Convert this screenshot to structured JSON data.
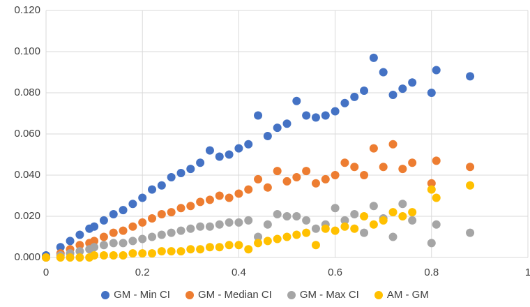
{
  "chart_data": {
    "type": "scatter",
    "x": [
      0,
      0.03,
      0.05,
      0.07,
      0.09,
      0.1,
      0.12,
      0.14,
      0.16,
      0.18,
      0.2,
      0.22,
      0.24,
      0.26,
      0.28,
      0.3,
      0.32,
      0.34,
      0.36,
      0.38,
      0.4,
      0.42,
      0.44,
      0.46,
      0.48,
      0.5,
      0.52,
      0.54,
      0.56,
      0.58,
      0.6,
      0.62,
      0.64,
      0.66,
      0.68,
      0.7,
      0.72,
      0.74,
      0.76,
      0.8,
      0.81,
      0.88
    ],
    "series": [
      {
        "name": "GM - Min CI",
        "color": "#4472c4",
        "values": [
          0.001,
          0.005,
          0.008,
          0.011,
          0.014,
          0.015,
          0.018,
          0.021,
          0.023,
          0.026,
          0.029,
          0.033,
          0.035,
          0.039,
          0.041,
          0.043,
          0.046,
          0.052,
          0.049,
          0.05,
          0.053,
          0.055,
          0.069,
          0.059,
          0.063,
          0.065,
          0.076,
          0.069,
          0.068,
          0.069,
          0.071,
          0.075,
          0.078,
          0.081,
          0.097,
          0.09,
          0.079,
          0.082,
          0.085,
          0.08,
          0.091,
          0.088
        ]
      },
      {
        "name": "GM - Median CI",
        "color": "#ed7d31",
        "values": [
          0,
          0.002,
          0.004,
          0.006,
          0.007,
          0.008,
          0.01,
          0.012,
          0.013,
          0.015,
          0.017,
          0.019,
          0.021,
          0.022,
          0.024,
          0.025,
          0.027,
          0.028,
          0.03,
          0.029,
          0.031,
          0.033,
          0.038,
          0.034,
          0.042,
          0.037,
          0.039,
          0.042,
          0.036,
          0.038,
          0.04,
          0.046,
          0.044,
          0.04,
          0.053,
          0.044,
          0.055,
          0.043,
          0.046,
          0.036,
          0.047,
          0.044
        ]
      },
      {
        "name": "GM - Max CI",
        "color": "#a5a5a5",
        "values": [
          0,
          0.001,
          0.002,
          0.003,
          0.004,
          0.005,
          0.006,
          0.007,
          0.007,
          0.008,
          0.009,
          0.01,
          0.011,
          0.012,
          0.013,
          0.014,
          0.015,
          0.015,
          0.016,
          0.017,
          0.017,
          0.018,
          0.01,
          0.016,
          0.021,
          0.02,
          0.02,
          0.018,
          0.014,
          0.016,
          0.024,
          0.018,
          0.021,
          0.012,
          0.025,
          0.019,
          0.01,
          0.026,
          0.018,
          0.007,
          0.016,
          0.012
        ]
      },
      {
        "name": "AM - GM",
        "color": "#ffc000",
        "values": [
          0,
          0,
          0,
          0,
          0,
          0.001,
          0.001,
          0.001,
          0.001,
          0.002,
          0.002,
          0.002,
          0.003,
          0.003,
          0.003,
          0.004,
          0.004,
          0.005,
          0.005,
          0.006,
          0.006,
          0.004,
          0.007,
          0.008,
          0.009,
          0.01,
          0.011,
          0.012,
          0.006,
          0.014,
          0.013,
          0.015,
          0.014,
          0.02,
          0.016,
          0.018,
          0.022,
          0.02,
          0.022,
          0.033,
          0.029,
          0.035
        ]
      }
    ],
    "xlim": [
      0,
      1
    ],
    "xticks": [
      0,
      0.2,
      0.4,
      0.6,
      0.8,
      1
    ],
    "ylim": [
      0,
      0.12
    ],
    "yticks": [
      {
        "value": 0,
        "label": "0.000"
      },
      {
        "value": 0.02,
        "label": "0.020"
      },
      {
        "value": 0.04,
        "label": "0.040"
      },
      {
        "value": 0.06,
        "label": "0.060"
      },
      {
        "value": 0.08,
        "label": "0.080"
      },
      {
        "value": 0.1,
        "label": "0.100"
      },
      {
        "value": 0.12,
        "label": "0.120"
      }
    ],
    "grid": true,
    "legend": "bottom"
  }
}
